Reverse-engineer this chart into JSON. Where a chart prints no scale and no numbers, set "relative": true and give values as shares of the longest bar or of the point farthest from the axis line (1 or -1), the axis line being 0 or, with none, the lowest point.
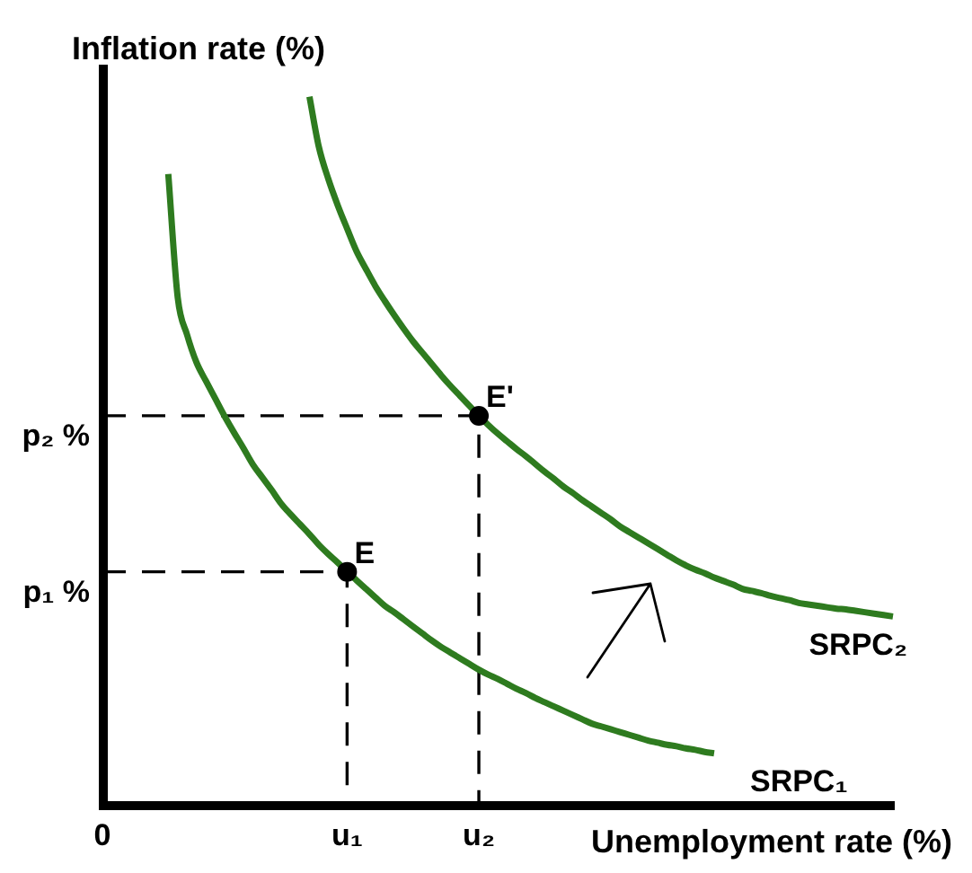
{
  "chart_data": {
    "type": "line",
    "relative": true,
    "xlabel": "Unemployment rate (%)",
    "ylabel": "Inflation rate (%)",
    "categories": [
      "0",
      null,
      null,
      null,
      null,
      null,
      null,
      null,
      null,
      null,
      null,
      null,
      null,
      null,
      null,
      null,
      null,
      null,
      null,
      null,
      null,
      null,
      null,
      null,
      null,
      null,
      "u₁",
      null,
      null,
      null,
      null,
      null,
      null,
      null,
      null,
      null,
      null,
      null,
      null,
      null,
      "u₂",
      null,
      null,
      null,
      null,
      null,
      null,
      null,
      null,
      null,
      null,
      null,
      null,
      null,
      null,
      null,
      null,
      null,
      null,
      null,
      null,
      null,
      null,
      null,
      null,
      null,
      null,
      null,
      null,
      null,
      null,
      null,
      null,
      null,
      null,
      null,
      null,
      null,
      null,
      null,
      null,
      null,
      null,
      null,
      null
    ],
    "annotations": [
      {
        "text": "E",
        "x": "u₁",
        "y": 0.33
      },
      {
        "text": "E'",
        "x": "u₂",
        "y": 0.55
      },
      {
        "text": "p₁ %",
        "x": "0",
        "y": 0.33
      },
      {
        "text": "p₂ %",
        "x": "0",
        "y": 0.55
      }
    ],
    "series": [
      {
        "name": "SRPC₁",
        "color": "#2e7b1f",
        "values": [
          null,
          null,
          null,
          null,
          null,
          null,
          null,
          0.891,
          0.717,
          0.664,
          0.625,
          0.599,
          0.574,
          0.549,
          0.526,
          0.504,
          0.481,
          0.463,
          0.445,
          0.426,
          0.411,
          0.397,
          0.383,
          0.368,
          0.355,
          0.343,
          0.33,
          0.318,
          0.306,
          0.294,
          0.282,
          0.273,
          0.263,
          0.253,
          0.243,
          0.233,
          0.224,
          0.216,
          0.208,
          0.2,
          0.192,
          0.185,
          0.179,
          0.172,
          0.165,
          0.159,
          0.152,
          0.146,
          0.14,
          0.134,
          0.128,
          0.122,
          0.116,
          0.112,
          0.108,
          0.104,
          0.1,
          0.096,
          0.092,
          0.089,
          0.086,
          0.084,
          0.081,
          0.079,
          0.076,
          0.074,
          null,
          null,
          null,
          null,
          null,
          null,
          null,
          null,
          null,
          null,
          null,
          null,
          null,
          null,
          null,
          null,
          null,
          null,
          null
        ]
      },
      {
        "name": "SRPC₂",
        "color": "#2e7b1f",
        "values": [
          null,
          null,
          null,
          null,
          null,
          null,
          null,
          null,
          null,
          null,
          null,
          null,
          null,
          null,
          null,
          null,
          null,
          null,
          null,
          null,
          null,
          null,
          1,
          0.929,
          0.884,
          0.847,
          0.814,
          0.782,
          0.757,
          0.733,
          0.712,
          0.692,
          0.673,
          0.655,
          0.639,
          0.623,
          0.607,
          0.592,
          0.578,
          0.564,
          0.55,
          0.537,
          0.525,
          0.514,
          0.503,
          0.493,
          0.482,
          0.471,
          0.461,
          0.45,
          0.441,
          0.431,
          0.422,
          0.413,
          0.404,
          0.394,
          0.386,
          0.378,
          0.37,
          0.362,
          0.354,
          0.346,
          0.339,
          0.333,
          0.328,
          0.322,
          0.317,
          0.312,
          0.306,
          0.303,
          0.3,
          0.296,
          0.293,
          0.29,
          0.286,
          0.284,
          0.282,
          0.28,
          0.278,
          0.277,
          0.275,
          0.273,
          0.271,
          0.269,
          0.267
        ]
      },
      {
        "color": "#000000",
        "line_style": "dashed",
        "x": [
          "0",
          "u₁",
          "u₁"
        ],
        "values": [
          0.33,
          0.33,
          0
        ]
      },
      {
        "color": "#000000",
        "line_style": "dashed",
        "x": [
          "0",
          "u₂",
          "u₂"
        ],
        "values": [
          0.55,
          0.55,
          0
        ]
      },
      {
        "type": "scatter",
        "color": "#000000",
        "marker": "circle",
        "x": [
          "u₁",
          "u₂"
        ],
        "values": [
          0.33,
          0.55
        ]
      }
    ]
  }
}
